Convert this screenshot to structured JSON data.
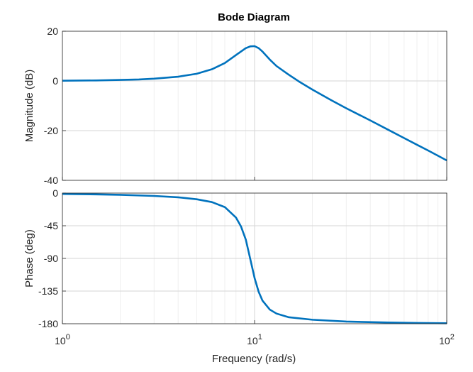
{
  "chart_data": {
    "type": "line",
    "title": "Bode Diagram",
    "xlabel": "Frequency  (rad/s)",
    "x_scale": "log",
    "xlim": [
      1,
      100
    ],
    "x_ticks": [
      {
        "value": 1,
        "base": "10",
        "exp": "0"
      },
      {
        "value": 10,
        "base": "10",
        "exp": "1"
      },
      {
        "value": 100,
        "base": "10",
        "exp": "2"
      }
    ],
    "grid": true,
    "line_color": "#0072BD",
    "panels": [
      {
        "name": "magnitude",
        "ylabel": "Magnitude (dB)",
        "ylim": [
          -40,
          20
        ],
        "y_ticks": [
          "20",
          "0",
          "-20",
          "-40"
        ],
        "x": [
          1,
          1.5,
          2,
          2.5,
          3,
          4,
          5,
          6,
          7,
          8,
          9,
          9.5,
          10,
          10.5,
          11,
          12,
          13,
          15,
          17,
          20,
          25,
          30,
          40,
          50,
          60,
          70,
          80,
          90,
          100
        ],
        "values": [
          0.1,
          0.2,
          0.4,
          0.6,
          0.9,
          1.7,
          2.9,
          4.7,
          7.2,
          10.4,
          13.2,
          13.9,
          14.0,
          13.2,
          11.8,
          8.6,
          6.0,
          2.6,
          -0.2,
          -3.5,
          -7.7,
          -11.0,
          -15.9,
          -19.8,
          -23.0,
          -25.7,
          -28.0,
          -30.1,
          -32.0
        ]
      },
      {
        "name": "phase",
        "ylabel": "Phase (deg)",
        "ylim": [
          -180,
          0
        ],
        "y_ticks": [
          "0",
          "-45",
          "-90",
          "-135",
          "-180"
        ],
        "x": [
          1,
          1.5,
          2,
          3,
          4,
          5,
          6,
          7,
          8,
          8.5,
          9,
          9.5,
          10,
          10.5,
          11,
          12,
          13,
          15,
          20,
          30,
          50,
          70,
          100
        ],
        "values": [
          -1.2,
          -1.8,
          -2.4,
          -3.9,
          -5.8,
          -8.5,
          -12.4,
          -19.3,
          -33.7,
          -46.0,
          -64.0,
          -91.0,
          -117.0,
          -136.0,
          -148.3,
          -160.5,
          -166.0,
          -171.0,
          -174.5,
          -177.0,
          -178.4,
          -179.0,
          -179.3
        ]
      }
    ]
  }
}
